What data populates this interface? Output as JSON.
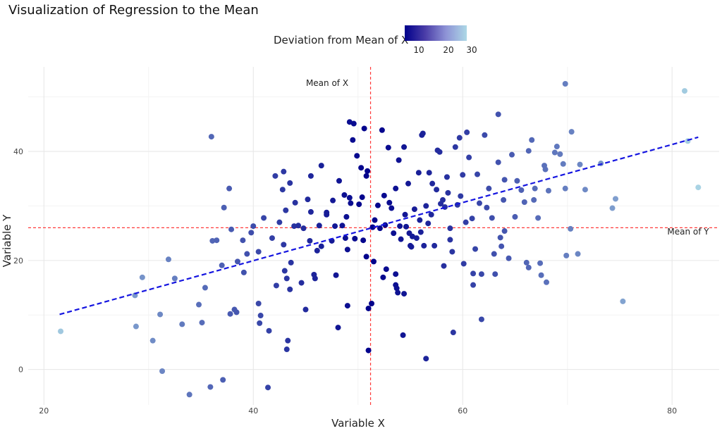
{
  "chart_data": {
    "type": "scatter",
    "title": "Visualization of Regression to the Mean",
    "xlabel": "Variable X",
    "ylabel": "Variable Y",
    "xlim": [
      18.5,
      84.5
    ],
    "ylim": [
      -6.5,
      55.5
    ],
    "x_ticks": [
      20,
      40,
      60,
      80
    ],
    "y_ticks": [
      0,
      20,
      40
    ],
    "grid": true,
    "legend": {
      "title": "Deviation from Mean of X",
      "placement": "top-center",
      "colorscale": [
        "#00008b",
        "#add8e6"
      ],
      "ticks": [
        10,
        20,
        30
      ]
    },
    "mean_x": 51.2,
    "mean_y": 26,
    "mean_x_label": "Mean of X",
    "mean_y_label": "Mean of Y",
    "regression_line": {
      "x": [
        21.5,
        82.5
      ],
      "y": [
        10.1,
        42.6
      ]
    },
    "points": [
      [
        21.6,
        7.0
      ],
      [
        28.7,
        13.6
      ],
      [
        28.8,
        7.9
      ],
      [
        29.4,
        16.9
      ],
      [
        30.4,
        5.3
      ],
      [
        31.1,
        10.1
      ],
      [
        31.3,
        -0.3
      ],
      [
        31.9,
        20.2
      ],
      [
        32.5,
        16.7
      ],
      [
        33.2,
        8.3
      ],
      [
        33.9,
        -4.6
      ],
      [
        34.8,
        11.9
      ],
      [
        35.1,
        8.6
      ],
      [
        35.4,
        15.0
      ],
      [
        35.9,
        -3.2
      ],
      [
        36.0,
        42.7
      ],
      [
        36.1,
        23.6
      ],
      [
        37.1,
        -1.9
      ],
      [
        37.2,
        29.7
      ],
      [
        37.0,
        19.1
      ],
      [
        37.7,
        33.2
      ],
      [
        37.9,
        25.7
      ],
      [
        37.8,
        10.2
      ],
      [
        38.4,
        10.5
      ],
      [
        38.2,
        11.0
      ],
      [
        39.0,
        23.7
      ],
      [
        39.1,
        17.8
      ],
      [
        39.4,
        21.2
      ],
      [
        39.8,
        25.1
      ],
      [
        40.0,
        26.3
      ],
      [
        40.5,
        12.1
      ],
      [
        40.7,
        9.9
      ],
      [
        40.6,
        8.5
      ],
      [
        41.0,
        27.8
      ],
      [
        41.5,
        7.1
      ],
      [
        41.4,
        -3.3
      ],
      [
        41.8,
        24.1
      ],
      [
        42.1,
        35.5
      ],
      [
        42.2,
        15.4
      ],
      [
        42.9,
        36.3
      ],
      [
        42.8,
        33.0
      ],
      [
        43.1,
        29.2
      ],
      [
        42.9,
        22.9
      ],
      [
        43.0,
        18.1
      ],
      [
        43.2,
        16.7
      ],
      [
        43.3,
        5.3
      ],
      [
        43.2,
        3.7
      ],
      [
        43.5,
        34.2
      ],
      [
        43.6,
        19.6
      ],
      [
        43.5,
        14.7
      ],
      [
        43.9,
        26.3
      ],
      [
        44.3,
        26.4
      ],
      [
        44.6,
        15.9
      ],
      [
        44.8,
        25.9
      ],
      [
        45.0,
        11.0
      ],
      [
        45.2,
        31.2
      ],
      [
        45.5,
        28.9
      ],
      [
        45.5,
        35.5
      ],
      [
        45.8,
        17.4
      ],
      [
        45.9,
        16.7
      ],
      [
        46.1,
        21.8
      ],
      [
        46.3,
        26.4
      ],
      [
        46.5,
        22.6
      ],
      [
        46.5,
        37.4
      ],
      [
        47.0,
        28.8
      ],
      [
        47.5,
        23.6
      ],
      [
        47.6,
        31.0
      ],
      [
        47.8,
        26.3
      ],
      [
        47.9,
        17.3
      ],
      [
        48.1,
        7.7
      ],
      [
        48.2,
        34.6
      ],
      [
        48.5,
        26.4
      ],
      [
        48.7,
        32.0
      ],
      [
        48.8,
        24.1
      ],
      [
        48.9,
        28.0
      ],
      [
        49.0,
        11.7
      ],
      [
        49.2,
        31.5
      ],
      [
        49.3,
        30.5
      ],
      [
        49.5,
        42.1
      ],
      [
        49.7,
        24.0
      ],
      [
        49.2,
        45.4
      ],
      [
        49.6,
        45.1
      ],
      [
        49.9,
        39.2
      ],
      [
        50.1,
        30.3
      ],
      [
        50.3,
        37.0
      ],
      [
        50.4,
        31.6
      ],
      [
        50.5,
        23.7
      ],
      [
        50.6,
        44.2
      ],
      [
        50.8,
        35.5
      ],
      [
        50.9,
        36.4
      ],
      [
        50.8,
        20.7
      ],
      [
        51.0,
        11.2
      ],
      [
        51.0,
        3.5
      ],
      [
        51.3,
        12.1
      ],
      [
        51.4,
        26.1
      ],
      [
        51.5,
        19.8
      ],
      [
        51.6,
        27.4
      ],
      [
        51.9,
        30.1
      ],
      [
        52.1,
        25.9
      ],
      [
        52.3,
        43.9
      ],
      [
        52.5,
        31.9
      ],
      [
        52.6,
        26.5
      ],
      [
        52.7,
        18.4
      ],
      [
        52.9,
        40.7
      ],
      [
        53.0,
        30.6
      ],
      [
        53.2,
        29.6
      ],
      [
        53.4,
        25.0
      ],
      [
        53.6,
        17.5
      ],
      [
        53.6,
        15.5
      ],
      [
        53.7,
        14.9
      ],
      [
        53.8,
        14.1
      ],
      [
        53.6,
        33.2
      ],
      [
        53.9,
        38.4
      ],
      [
        54.0,
        26.3
      ],
      [
        54.1,
        23.9
      ],
      [
        54.3,
        6.3
      ],
      [
        54.4,
        40.8
      ],
      [
        54.5,
        28.4
      ],
      [
        54.4,
        13.9
      ],
      [
        54.6,
        26.2
      ],
      [
        54.8,
        34.1
      ],
      [
        54.9,
        25.0
      ],
      [
        55.1,
        22.5
      ],
      [
        55.2,
        24.4
      ],
      [
        55.4,
        29.4
      ],
      [
        55.6,
        24.1
      ],
      [
        55.8,
        36.1
      ],
      [
        55.9,
        27.4
      ],
      [
        56.0,
        25.2
      ],
      [
        56.1,
        43.0
      ],
      [
        56.2,
        43.3
      ],
      [
        56.3,
        22.7
      ],
      [
        56.5,
        30.0
      ],
      [
        56.7,
        26.8
      ],
      [
        56.5,
        2.0
      ],
      [
        56.8,
        36.1
      ],
      [
        57.0,
        28.4
      ],
      [
        57.1,
        34.1
      ],
      [
        57.3,
        22.7
      ],
      [
        57.5,
        33.0
      ],
      [
        57.6,
        40.2
      ],
      [
        57.8,
        39.9
      ],
      [
        57.9,
        30.4
      ],
      [
        58.1,
        31.1
      ],
      [
        58.3,
        29.8
      ],
      [
        58.5,
        35.3
      ],
      [
        58.6,
        32.4
      ],
      [
        58.8,
        25.9
      ],
      [
        58.8,
        23.8
      ],
      [
        59.0,
        21.6
      ],
      [
        59.1,
        6.8
      ],
      [
        59.3,
        40.8
      ],
      [
        59.5,
        30.2
      ],
      [
        59.7,
        42.5
      ],
      [
        59.8,
        31.8
      ],
      [
        60.1,
        19.4
      ],
      [
        60.3,
        27.0
      ],
      [
        60.4,
        43.5
      ],
      [
        60.6,
        38.9
      ],
      [
        60.9,
        27.7
      ],
      [
        61.0,
        17.6
      ],
      [
        61.0,
        15.5
      ],
      [
        61.2,
        22.1
      ],
      [
        61.4,
        35.8
      ],
      [
        61.6,
        30.5
      ],
      [
        61.8,
        17.5
      ],
      [
        61.8,
        9.2
      ],
      [
        62.1,
        43.0
      ],
      [
        62.3,
        29.7
      ],
      [
        62.5,
        33.2
      ],
      [
        62.8,
        27.8
      ],
      [
        63.0,
        21.2
      ],
      [
        63.1,
        17.5
      ],
      [
        63.4,
        46.8
      ],
      [
        63.4,
        38.0
      ],
      [
        63.6,
        24.2
      ],
      [
        63.7,
        22.6
      ],
      [
        63.9,
        31.1
      ],
      [
        64.0,
        25.4
      ],
      [
        64.4,
        20.4
      ],
      [
        64.7,
        39.4
      ],
      [
        65.0,
        28.0
      ],
      [
        65.2,
        34.6
      ],
      [
        65.6,
        32.9
      ],
      [
        65.9,
        30.7
      ],
      [
        66.1,
        19.6
      ],
      [
        66.3,
        40.1
      ],
      [
        66.3,
        18.7
      ],
      [
        66.6,
        42.1
      ],
      [
        66.8,
        31.1
      ],
      [
        66.9,
        33.2
      ],
      [
        67.2,
        27.8
      ],
      [
        67.4,
        19.5
      ],
      [
        67.5,
        17.3
      ],
      [
        67.8,
        37.4
      ],
      [
        67.9,
        36.7
      ],
      [
        68.0,
        16.0
      ],
      [
        68.2,
        32.8
      ],
      [
        68.8,
        39.8
      ],
      [
        69.0,
        40.9
      ],
      [
        69.3,
        39.5
      ],
      [
        69.6,
        37.7
      ],
      [
        69.8,
        33.2
      ],
      [
        69.9,
        20.9
      ],
      [
        70.3,
        25.8
      ],
      [
        70.4,
        43.6
      ],
      [
        71.0,
        21.2
      ],
      [
        71.2,
        37.6
      ],
      [
        71.7,
        33.0
      ],
      [
        73.2,
        37.8
      ],
      [
        69.8,
        52.4
      ],
      [
        74.3,
        29.6
      ],
      [
        74.6,
        31.3
      ],
      [
        75.3,
        12.5
      ],
      [
        81.2,
        51.1
      ],
      [
        81.5,
        41.9
      ],
      [
        82.5,
        33.4
      ],
      [
        47.0,
        28.4
      ],
      [
        55.0,
        22.7
      ],
      [
        60.0,
        35.7
      ],
      [
        52.4,
        16.9
      ],
      [
        45.4,
        23.6
      ],
      [
        58.2,
        19.0
      ],
      [
        49.0,
        22.0
      ],
      [
        44.0,
        30.6
      ],
      [
        64.0,
        34.8
      ],
      [
        38.5,
        19.8
      ],
      [
        40.5,
        21.6
      ],
      [
        36.5,
        23.7
      ],
      [
        42.5,
        27.0
      ]
    ]
  }
}
